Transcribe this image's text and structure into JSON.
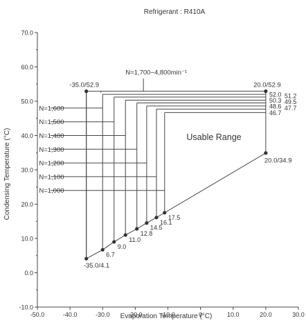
{
  "chart_data": {
    "type": "line",
    "title": "Refrigerant : R410A",
    "xlabel": "Evaporation Temperature (°C)",
    "ylabel": "Condensing Temperature (°C)",
    "xlim": [
      -50,
      30
    ],
    "ylim": [
      -10,
      70
    ],
    "xticks": [
      -50,
      -40,
      -30,
      -20,
      -10,
      0,
      10,
      20,
      30
    ],
    "xtick_labels": [
      "-50.0",
      "-40.0",
      "-30.0",
      "-20.0",
      "-10.0",
      "0",
      "10.0",
      "20.0",
      "30.0"
    ],
    "yticks": [
      -10,
      0,
      10,
      20,
      30,
      40,
      50,
      60,
      70
    ],
    "ytick_labels": [
      "-10.0",
      "0.0",
      "10.0",
      "20.0",
      "30.0",
      "40.0",
      "50.0",
      "60.0",
      "70.0"
    ],
    "region_label": "Usable Range",
    "max_speed_label": "N=1,700~4,800min⁻¹",
    "envelope": [
      {
        "x": -35,
        "y": 4.1
      },
      {
        "x": -35,
        "y": 52.9
      },
      {
        "x": 20,
        "y": 52.9
      },
      {
        "x": 20,
        "y": 34.9
      }
    ],
    "corner_labels": [
      "-35.0/4.1",
      "-35.0/52.9",
      "20.0/52.9",
      "20.0/34.9"
    ],
    "speed_series": [
      {
        "name": "N=1,600",
        "x": -30.0,
        "y_low": 6.7,
        "y_high": 52.0,
        "low_label": "6.7",
        "high_label": "52.0",
        "y_label_pos": 48.0
      },
      {
        "name": "N=1,500",
        "x": -26.5,
        "y_low": 9.0,
        "y_high": 51.2,
        "low_label": "9.0",
        "high_label": "51.2",
        "y_label_pos": 44.0
      },
      {
        "name": "N=1,400",
        "x": -23.0,
        "y_low": 11.0,
        "y_high": 50.3,
        "low_label": "11.0",
        "high_label": "50.3",
        "y_label_pos": 40.0
      },
      {
        "name": "N=1,300",
        "x": -19.5,
        "y_low": 12.8,
        "y_high": 49.5,
        "low_label": "12.8",
        "high_label": "49.5",
        "y_label_pos": 36.0
      },
      {
        "name": "N=1,200",
        "x": -16.5,
        "y_low": 14.5,
        "y_high": 48.6,
        "low_label": "14.5",
        "high_label": "48.6",
        "y_label_pos": 32.0
      },
      {
        "name": "N=1,100",
        "x": -13.5,
        "y_low": 16.1,
        "y_high": 47.7,
        "low_label": "16.1",
        "high_label": "47.7",
        "y_label_pos": 28.0
      },
      {
        "name": "N=1,000",
        "x": -11.0,
        "y_low": 17.5,
        "y_high": 46.7,
        "low_label": "17.5",
        "high_label": "46.7",
        "y_label_pos": 24.0
      }
    ],
    "grid": false,
    "legend": "none"
  }
}
